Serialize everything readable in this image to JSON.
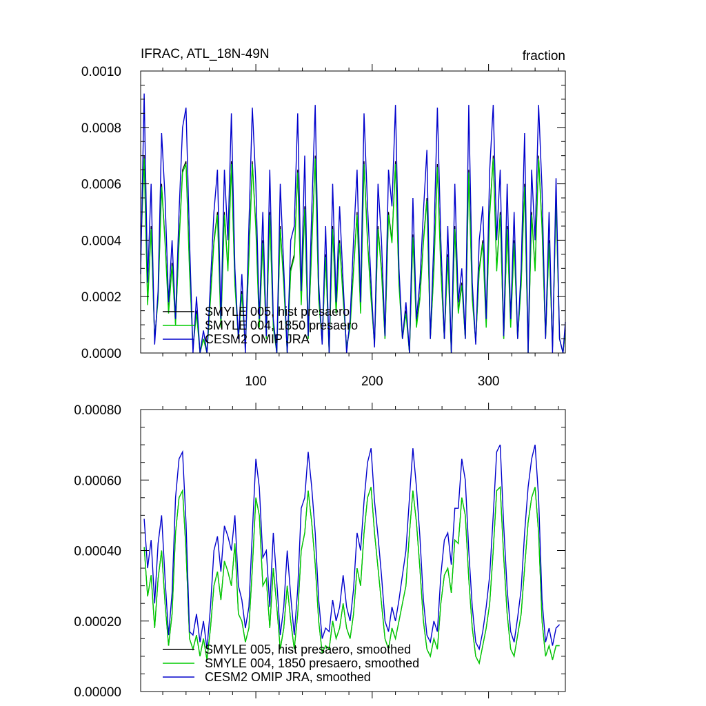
{
  "chart_data": [
    {
      "type": "line",
      "title": "IFRAC, ATL_18N-49N",
      "units": "fraction",
      "xlim": [
        1,
        366
      ],
      "ylim": [
        0,
        0.001
      ],
      "x_ticks": [
        100,
        200,
        300
      ],
      "x_tick_labels": [
        "100",
        "200",
        "300"
      ],
      "y_ticks": [
        0,
        0.0002,
        0.0004,
        0.0006,
        0.0008,
        0.001
      ],
      "y_tick_labels": [
        "0.0000",
        "0.0002",
        "0.0004",
        "0.0006",
        "0.0008",
        "0.0010"
      ],
      "legend_position": "bottom-left",
      "x": [
        1,
        4,
        7,
        10,
        13,
        16,
        19,
        22,
        25,
        28,
        31,
        34,
        37,
        40,
        43,
        46,
        49,
        52,
        55,
        58,
        61,
        64,
        67,
        70,
        73,
        76,
        79,
        82,
        85,
        88,
        91,
        94,
        97,
        100,
        103,
        106,
        109,
        112,
        115,
        118,
        121,
        124,
        127,
        130,
        133,
        136,
        139,
        142,
        145,
        148,
        151,
        154,
        157,
        160,
        163,
        166,
        169,
        172,
        175,
        178,
        181,
        184,
        187,
        190,
        193,
        196,
        199,
        202,
        205,
        208,
        211,
        214,
        217,
        220,
        223,
        226,
        229,
        232,
        235,
        238,
        241,
        244,
        247,
        250,
        253,
        256,
        259,
        262,
        265,
        268,
        271,
        274,
        277,
        280,
        283,
        286,
        289,
        292,
        295,
        298,
        301,
        304,
        307,
        310,
        313,
        316,
        319,
        322,
        325,
        328,
        331,
        334,
        337,
        340,
        343,
        346,
        349,
        352,
        355,
        358,
        361,
        364,
        366
      ],
      "series": [
        {
          "name": "SMYLE 005, hist presaero",
          "color": "#000000",
          "values": [
            0.00036,
            0.0007,
            0.00018,
            0.00045,
            5e-05,
            0.0002,
            0.0006,
            0.0004,
            0.00015,
            0.00032,
            0.0001,
            0.0004,
            0.00065,
            0.00068,
            0.0003,
            2e-05,
            0.00015,
            0.0,
            5e-05,
            0.0,
            0.0002,
            0.0004,
            0.0005,
            0.0001,
            0.0005,
            0.0003,
            0.00068,
            0.00025,
            5e-05,
            0.00022,
            2e-05,
            0.00034,
            0.00068,
            0.00045,
            0.0001,
            0.0004,
            5e-05,
            0.0005,
            0.0001,
            0.0,
            0.00045,
            0.00025,
            0.0,
            0.0003,
            0.00035,
            0.00065,
            0.00018,
            0.00052,
            5e-05,
            0.00038,
            0.0007,
            0.0002,
            4e-05,
            0.00035,
            0.0,
            0.00045,
            0.00015,
            0.0004,
            0.0002,
            2e-05,
            0.0001,
            0.0003,
            0.0005,
            0.00015,
            0.00068,
            0.0004,
            0.0002,
            3e-05,
            0.00045,
            0.0003,
            5e-05,
            0.0005,
            0.0004,
            0.00068,
            0.00025,
            5e-05,
            0.00015,
            0.0,
            0.00042,
            0.0001,
            0.0002,
            0.0004,
            0.00055,
            5e-05,
            0.0003,
            0.00067,
            0.0003,
            5e-05,
            0.00035,
            0.0,
            0.00045,
            0.00015,
            0.00025,
            5e-05,
            0.00065,
            0.0002,
            4e-05,
            0.0003,
            0.0004,
            0.0001,
            0.0005,
            0.0007,
            0.0003,
            0.0005,
            5e-05,
            0.00045,
            0.0001,
            0.0004,
            5e-05,
            0.00025,
            0.0006,
            0.0,
            0.0005,
            0.0003,
            0.0007,
            0.00045,
            5e-05,
            0.0004,
            2e-05,
            0.00055,
            5e-05,
            0.0,
            8e-05
          ]
        },
        {
          "name": "SMYLE 004, 1850 presaero",
          "color": "#00cc00",
          "values": [
            0.00035,
            0.00069,
            0.00017,
            0.00044,
            5e-05,
            0.00019,
            0.00059,
            0.00039,
            0.00014,
            0.00031,
            0.0001,
            0.00039,
            0.00064,
            0.00067,
            0.00029,
            2e-05,
            0.00014,
            0.0,
            5e-05,
            0.0,
            0.00019,
            0.00039,
            0.00049,
            9e-05,
            0.00049,
            0.00029,
            0.00067,
            0.00024,
            5e-05,
            0.00021,
            2e-05,
            0.00033,
            0.00067,
            0.00044,
            9e-05,
            0.00039,
            5e-05,
            0.00049,
            9e-05,
            0.0,
            0.00044,
            0.00024,
            0.0,
            0.00029,
            0.00034,
            0.00064,
            0.00017,
            0.00051,
            5e-05,
            0.00037,
            0.00069,
            0.00019,
            4e-05,
            0.00034,
            0.0,
            0.00044,
            0.00014,
            0.00039,
            0.00019,
            2e-05,
            9e-05,
            0.00029,
            0.00049,
            0.00014,
            0.00067,
            0.00039,
            0.00019,
            3e-05,
            0.00044,
            0.00029,
            5e-05,
            0.00049,
            0.00039,
            0.00067,
            0.00024,
            5e-05,
            0.00014,
            0.0,
            0.00041,
            9e-05,
            0.00019,
            0.00039,
            0.00054,
            5e-05,
            0.00029,
            0.00066,
            0.00029,
            5e-05,
            0.00034,
            0.0,
            0.00044,
            0.00014,
            0.00024,
            5e-05,
            0.00064,
            0.00019,
            4e-05,
            0.00029,
            0.00039,
            9e-05,
            0.00049,
            0.00069,
            0.00029,
            0.00049,
            5e-05,
            0.00044,
            9e-05,
            0.00039,
            5e-05,
            0.00024,
            0.00059,
            0.0,
            0.00049,
            0.00029,
            0.00069,
            0.00044,
            5e-05,
            0.00039,
            2e-05,
            0.00054,
            5e-05,
            0.0,
            8e-05
          ]
        },
        {
          "name": "CESM2 OMIP JRA",
          "color": "#0000cc",
          "values": [
            0.00028,
            0.00092,
            0.00025,
            0.0006,
            3e-05,
            0.00022,
            0.00078,
            0.00055,
            0.00018,
            0.0004,
            0.00012,
            0.0005,
            0.0008,
            0.00087,
            0.0004,
            0.0,
            0.0002,
            0.0,
            8e-05,
            0.0,
            0.00025,
            0.0005,
            0.00065,
            0.00012,
            0.00065,
            0.0004,
            0.00085,
            0.0003,
            5e-05,
            0.00028,
            0.0,
            0.00045,
            0.00087,
            0.0006,
            0.00012,
            0.0005,
            6e-05,
            0.00065,
            0.00012,
            0.0,
            0.0006,
            0.0003,
            0.0,
            0.0004,
            0.00045,
            0.00085,
            0.00022,
            0.0007,
            6e-05,
            0.0005,
            0.00088,
            0.00025,
            3e-05,
            0.00045,
            0.0,
            0.0006,
            0.00018,
            0.00052,
            0.00025,
            0.0,
            0.00012,
            0.0004,
            0.00065,
            0.00018,
            0.00085,
            0.00052,
            0.00025,
            2e-05,
            0.0006,
            0.0004,
            6e-05,
            0.00065,
            0.00052,
            0.00088,
            0.0003,
            5e-05,
            0.00018,
            0.0,
            0.00055,
            0.00012,
            0.00025,
            0.0005,
            0.00072,
            5e-05,
            0.0004,
            0.00087,
            0.0004,
            5e-05,
            0.00045,
            0.0,
            0.0006,
            0.00018,
            0.0003,
            5e-05,
            0.00088,
            0.00025,
            3e-05,
            0.0004,
            0.00052,
            0.00012,
            0.00065,
            0.00088,
            0.0004,
            0.00065,
            6e-05,
            0.0006,
            0.00012,
            0.0005,
            5e-05,
            0.0003,
            0.00078,
            0.0,
            0.00065,
            0.0004,
            0.00088,
            0.00058,
            5e-05,
            0.0005,
            0.0,
            0.00062,
            5e-05,
            0.0,
            0.00011
          ]
        }
      ]
    },
    {
      "type": "line",
      "xlim": [
        1,
        366
      ],
      "ylim": [
        0,
        0.0008
      ],
      "x_ticks": [
        100,
        200,
        300
      ],
      "y_ticks": [
        0,
        0.0002,
        0.0004,
        0.0006,
        0.0008
      ],
      "y_tick_labels": [
        "0.00000",
        "0.00020",
        "0.00040",
        "0.00060",
        "0.00080"
      ],
      "legend_position": "bottom-left",
      "x": [
        4,
        7,
        10,
        13,
        16,
        19,
        22,
        25,
        28,
        31,
        34,
        37,
        40,
        43,
        46,
        49,
        52,
        55,
        58,
        61,
        64,
        67,
        70,
        73,
        76,
        79,
        82,
        85,
        88,
        91,
        94,
        97,
        100,
        103,
        106,
        109,
        112,
        115,
        118,
        121,
        124,
        127,
        130,
        133,
        136,
        139,
        142,
        145,
        148,
        151,
        154,
        157,
        160,
        163,
        166,
        169,
        172,
        175,
        178,
        181,
        184,
        187,
        190,
        193,
        196,
        199,
        202,
        205,
        208,
        211,
        214,
        217,
        220,
        223,
        226,
        229,
        232,
        235,
        238,
        241,
        244,
        247,
        250,
        253,
        256,
        259,
        262,
        265,
        268,
        271,
        274,
        277,
        280,
        283,
        286,
        289,
        292,
        295,
        298,
        301,
        304,
        307,
        310,
        313,
        316,
        319,
        322,
        325,
        328,
        331,
        334,
        337,
        340,
        343,
        346,
        349,
        352,
        355,
        358,
        361
      ],
      "series": [
        {
          "name": "SMYLE 005, hist presaero, smoothed",
          "color": "#000000",
          "values": [
            0.00041,
            0.00027,
            0.00033,
            0.00018,
            0.00032,
            0.0004,
            0.00025,
            0.00013,
            0.00022,
            0.00045,
            0.00055,
            0.00057,
            0.0004,
            0.00015,
            0.00012,
            0.00016,
            0.0001,
            0.00015,
            9e-05,
            0.00018,
            0.0003,
            0.00034,
            0.00026,
            0.00037,
            0.00034,
            0.0003,
            0.00042,
            0.00022,
            0.0002,
            0.00014,
            0.00018,
            0.00035,
            0.00055,
            0.0005,
            0.0003,
            0.00032,
            0.00018,
            0.00035,
            0.00024,
            0.00012,
            0.00018,
            0.0003,
            0.0002,
            0.00012,
            0.00022,
            0.0004,
            0.00045,
            0.00057,
            0.00048,
            0.00036,
            0.0002,
            0.00011,
            0.00013,
            0.00012,
            0.0002,
            0.00015,
            0.00018,
            0.00025,
            0.00018,
            0.00015,
            0.00022,
            0.00035,
            0.0003,
            0.00045,
            0.00055,
            0.00058,
            0.00045,
            0.00035,
            0.00025,
            0.00015,
            0.00012,
            0.00018,
            0.00015,
            0.0002,
            0.00025,
            0.0003,
            0.00045,
            0.00057,
            0.00048,
            0.00035,
            0.0002,
            0.00012,
            0.0001,
            0.00015,
            0.00012,
            0.00025,
            0.00033,
            0.00035,
            0.00028,
            0.00043,
            0.00042,
            0.00055,
            0.0005,
            0.00032,
            0.00018,
            0.0001,
            8e-05,
            0.00013,
            0.00018,
            0.00025,
            0.0004,
            0.00057,
            0.00058,
            0.00038,
            0.00022,
            0.00012,
            0.0001,
            0.00016,
            0.00022,
            0.00035,
            0.00048,
            0.00055,
            0.00058,
            0.00045,
            0.0002,
            0.0001,
            0.00013,
            9e-05,
            0.00013,
            0.00013
          ]
        },
        {
          "name": "SMYLE 004, 1850 presaero, smoothed",
          "color": "#00cc00",
          "values": [
            0.00041,
            0.00027,
            0.00033,
            0.00018,
            0.00032,
            0.0004,
            0.00025,
            0.00013,
            0.00022,
            0.00045,
            0.00055,
            0.00057,
            0.0004,
            0.00015,
            0.00012,
            0.00016,
            0.0001,
            0.00015,
            9e-05,
            0.00018,
            0.0003,
            0.00034,
            0.00026,
            0.00037,
            0.00034,
            0.0003,
            0.00042,
            0.00022,
            0.0002,
            0.00014,
            0.00018,
            0.00035,
            0.00055,
            0.0005,
            0.0003,
            0.00032,
            0.00018,
            0.00035,
            0.00024,
            0.00012,
            0.00018,
            0.0003,
            0.0002,
            0.00012,
            0.00022,
            0.0004,
            0.00045,
            0.00057,
            0.00048,
            0.00036,
            0.0002,
            0.00011,
            0.00013,
            0.00012,
            0.0002,
            0.00015,
            0.00018,
            0.00025,
            0.00018,
            0.00015,
            0.00022,
            0.00035,
            0.0003,
            0.00045,
            0.00055,
            0.00058,
            0.00045,
            0.00035,
            0.00025,
            0.00015,
            0.00012,
            0.00018,
            0.00015,
            0.0002,
            0.00025,
            0.0003,
            0.00045,
            0.00057,
            0.00048,
            0.00035,
            0.0002,
            0.00012,
            0.0001,
            0.00015,
            0.00012,
            0.00025,
            0.00033,
            0.00035,
            0.00028,
            0.00043,
            0.00042,
            0.00055,
            0.0005,
            0.00032,
            0.00018,
            0.0001,
            8e-05,
            0.00013,
            0.00018,
            0.00025,
            0.0004,
            0.00057,
            0.00058,
            0.00038,
            0.00022,
            0.00012,
            0.0001,
            0.00016,
            0.00022,
            0.00035,
            0.00048,
            0.00055,
            0.00058,
            0.00045,
            0.0002,
            0.0001,
            0.00013,
            9e-05,
            0.00013,
            0.00013
          ]
        },
        {
          "name": "CESM2 OMIP JRA, smoothed",
          "color": "#0000cc",
          "values": [
            0.00049,
            0.00035,
            0.00043,
            0.00025,
            0.00042,
            0.0005,
            0.00032,
            0.00016,
            0.00028,
            0.00055,
            0.00066,
            0.00068,
            0.00048,
            0.00017,
            0.00016,
            0.00022,
            0.00014,
            0.0002,
            0.00012,
            0.00024,
            0.0004,
            0.00044,
            0.00034,
            0.00047,
            0.00044,
            0.0004,
            0.0005,
            0.0003,
            0.00026,
            0.00018,
            0.00024,
            0.00045,
            0.00066,
            0.00058,
            0.00038,
            0.0004,
            0.00024,
            0.00045,
            0.00031,
            0.00016,
            0.00024,
            0.0004,
            0.00027,
            0.00016,
            0.00029,
            0.00052,
            0.00055,
            0.00068,
            0.00058,
            0.00045,
            0.00026,
            0.00015,
            0.00018,
            0.00017,
            0.00026,
            0.0002,
            0.00024,
            0.00033,
            0.00024,
            0.0002,
            0.00029,
            0.00045,
            0.0004,
            0.00054,
            0.00065,
            0.00069,
            0.00054,
            0.00044,
            0.00033,
            0.0002,
            0.00017,
            0.00024,
            0.0002,
            0.00026,
            0.00033,
            0.0004,
            0.00055,
            0.00069,
            0.00058,
            0.00044,
            0.00026,
            0.00016,
            0.00014,
            0.0002,
            0.00017,
            0.00033,
            0.00043,
            0.00045,
            0.00036,
            0.00052,
            0.00052,
            0.00066,
            0.0006,
            0.0004,
            0.00024,
            0.00014,
            0.00012,
            0.00017,
            0.00024,
            0.00033,
            0.0005,
            0.00068,
            0.0007,
            0.00047,
            0.00029,
            0.00017,
            0.00014,
            0.00021,
            0.00029,
            0.00045,
            0.00058,
            0.00066,
            0.0007,
            0.00055,
            0.00026,
            0.00014,
            0.00018,
            0.00013,
            0.00018,
            0.00019
          ]
        }
      ]
    }
  ]
}
